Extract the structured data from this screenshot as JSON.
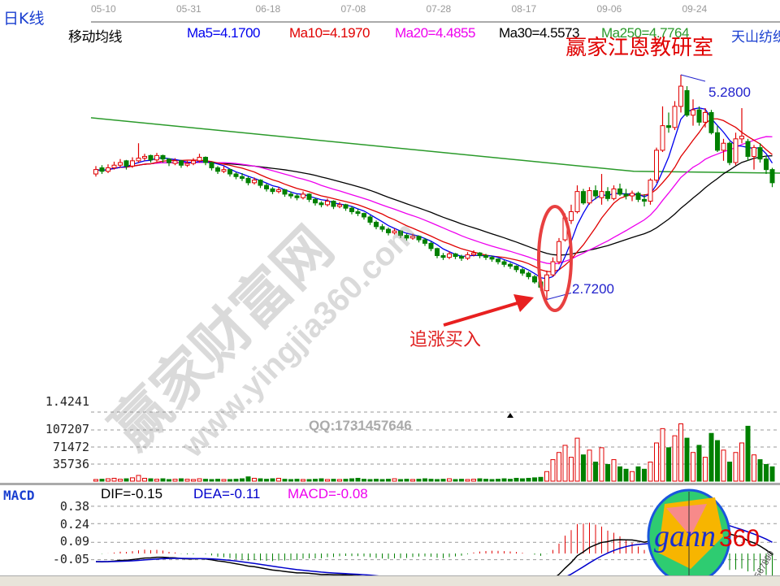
{
  "header": {
    "title": "日K线",
    "indicator_name": "移动均线",
    "stock_name": "天山纺织",
    "watermark_title": "嬴家江恩教研室"
  },
  "ma_legend": [
    {
      "label": "Ma5=4.1700",
      "color": "#0000ee"
    },
    {
      "label": "Ma10=4.1970",
      "color": "#e00000"
    },
    {
      "label": "Ma20=4.4855",
      "color": "#ee00ee"
    },
    {
      "label": "Ma30=4.5573",
      "color": "#000000"
    },
    {
      "label": "Ma250=4.7764",
      "color": "#2a9a2a"
    }
  ],
  "watermark": {
    "main": "赢家财富网",
    "url": "www.yingjia360.com",
    "qq": "QQ:1731457646"
  },
  "annotations": {
    "buy_text": "追涨买入",
    "high_label": "5.2800",
    "low_label": "2.7200"
  },
  "volume_axis": {
    "top_label": "1.4241",
    "ticks": [
      "107207",
      "71472",
      "35736"
    ]
  },
  "macd": {
    "title": "MACD",
    "dif": "DIF=-0.15",
    "dea": "DEA=-0.11",
    "macd": "MACD=-0.08",
    "ticks": [
      "0.38",
      "0.24",
      "0.09",
      "-0.05"
    ],
    "colors": {
      "dif": "#000000",
      "dea": "#0000cc",
      "macd": "#ee00ee"
    }
  },
  "logo": {
    "text1": "gann",
    "text2": "360",
    "ring_digits": "1234567890"
  },
  "colors": {
    "up": "#e00000",
    "down": "#008000"
  },
  "chart_data": {
    "type": "candlestick",
    "date_ticks": [
      {
        "label": "05-10",
        "index": 0
      },
      {
        "label": "05-31",
        "index": 14
      },
      {
        "label": "06-18",
        "index": 27
      },
      {
        "label": "07-08",
        "index": 41
      },
      {
        "label": "07-28",
        "index": 55
      },
      {
        "label": "08-17",
        "index": 69
      },
      {
        "label": "09-06",
        "index": 83
      },
      {
        "label": "09-24",
        "index": 97
      }
    ],
    "price_range": [
      2.72,
      5.28
    ],
    "ma250_ends": [
      4.79,
      4.16
    ],
    "ohlc": [
      [
        4.15,
        4.24,
        4.12,
        4.2
      ],
      [
        4.22,
        4.25,
        4.15,
        4.18
      ],
      [
        4.18,
        4.26,
        4.16,
        4.22
      ],
      [
        4.22,
        4.29,
        4.2,
        4.25
      ],
      [
        4.25,
        4.32,
        4.22,
        4.28
      ],
      [
        4.3,
        4.31,
        4.2,
        4.24
      ],
      [
        4.24,
        4.34,
        4.22,
        4.3
      ],
      [
        4.3,
        4.5,
        4.28,
        4.33
      ],
      [
        4.33,
        4.38,
        4.3,
        4.35
      ],
      [
        4.36,
        4.37,
        4.28,
        4.31
      ],
      [
        4.31,
        4.39,
        4.29,
        4.36
      ],
      [
        4.36,
        4.37,
        4.28,
        4.32
      ],
      [
        4.32,
        4.33,
        4.24,
        4.28
      ],
      [
        4.27,
        4.33,
        4.25,
        4.3
      ],
      [
        4.3,
        4.31,
        4.22,
        4.25
      ],
      [
        4.25,
        4.3,
        4.23,
        4.27
      ],
      [
        4.27,
        4.33,
        4.25,
        4.3
      ],
      [
        4.3,
        4.38,
        4.28,
        4.34
      ],
      [
        4.34,
        4.35,
        4.25,
        4.28
      ],
      [
        4.28,
        4.29,
        4.19,
        4.22
      ],
      [
        4.22,
        4.24,
        4.15,
        4.18
      ],
      [
        4.18,
        4.24,
        4.16,
        4.2
      ],
      [
        4.2,
        4.21,
        4.12,
        4.15
      ],
      [
        4.15,
        4.17,
        4.09,
        4.12
      ],
      [
        4.12,
        4.16,
        4.07,
        4.1
      ],
      [
        4.1,
        4.12,
        4.02,
        4.05
      ],
      [
        4.05,
        4.11,
        4.03,
        4.08
      ],
      [
        4.08,
        4.09,
        3.99,
        4.02
      ],
      [
        4.02,
        4.04,
        3.95,
        3.98
      ],
      [
        3.98,
        4.0,
        3.92,
        3.95
      ],
      [
        3.95,
        4.0,
        3.93,
        3.97
      ],
      [
        3.97,
        3.98,
        3.89,
        3.92
      ],
      [
        3.92,
        3.95,
        3.87,
        3.9
      ],
      [
        3.9,
        3.92,
        3.85,
        3.88
      ],
      [
        3.88,
        3.95,
        3.86,
        3.92
      ],
      [
        3.92,
        3.93,
        3.83,
        3.86
      ],
      [
        3.86,
        3.88,
        3.79,
        3.82
      ],
      [
        3.82,
        3.84,
        3.77,
        3.8
      ],
      [
        3.8,
        3.87,
        3.78,
        3.84
      ],
      [
        3.84,
        3.85,
        3.75,
        3.78
      ],
      [
        3.78,
        3.83,
        3.76,
        3.8
      ],
      [
        3.8,
        3.81,
        3.73,
        3.76
      ],
      [
        3.76,
        3.78,
        3.69,
        3.72
      ],
      [
        3.72,
        3.75,
        3.67,
        3.7
      ],
      [
        3.7,
        3.71,
        3.63,
        3.66
      ],
      [
        3.66,
        3.68,
        3.57,
        3.6
      ],
      [
        3.6,
        3.62,
        3.52,
        3.55
      ],
      [
        3.55,
        3.58,
        3.49,
        3.52
      ],
      [
        3.52,
        3.54,
        3.45,
        3.48
      ],
      [
        3.48,
        3.53,
        3.46,
        3.5
      ],
      [
        3.5,
        3.51,
        3.42,
        3.45
      ],
      [
        3.45,
        3.47,
        3.39,
        3.42
      ],
      [
        3.42,
        3.47,
        3.4,
        3.44
      ],
      [
        3.44,
        3.45,
        3.37,
        3.4
      ],
      [
        3.4,
        3.42,
        3.33,
        3.36
      ],
      [
        3.36,
        3.38,
        3.27,
        3.3
      ],
      [
        3.3,
        3.31,
        3.19,
        3.22
      ],
      [
        3.22,
        3.25,
        3.17,
        3.2
      ],
      [
        3.2,
        3.27,
        3.18,
        3.24
      ],
      [
        3.24,
        3.25,
        3.18,
        3.21
      ],
      [
        3.21,
        3.23,
        3.16,
        3.19
      ],
      [
        3.19,
        3.26,
        3.17,
        3.23
      ],
      [
        3.23,
        3.28,
        3.21,
        3.25
      ],
      [
        3.25,
        3.26,
        3.19,
        3.22
      ],
      [
        3.22,
        3.24,
        3.17,
        3.2
      ],
      [
        3.2,
        3.22,
        3.15,
        3.18
      ],
      [
        3.18,
        3.19,
        3.12,
        3.15
      ],
      [
        3.15,
        3.17,
        3.09,
        3.12
      ],
      [
        3.12,
        3.14,
        3.07,
        3.1
      ],
      [
        3.1,
        3.11,
        3.03,
        3.06
      ],
      [
        3.06,
        3.08,
        2.99,
        3.02
      ],
      [
        3.02,
        3.04,
        2.95,
        2.98
      ],
      [
        2.98,
        3.0,
        2.9,
        2.92
      ],
      [
        2.92,
        2.94,
        2.82,
        2.86
      ],
      [
        2.82,
        3.05,
        2.72,
        3.0
      ],
      [
        3.0,
        3.2,
        2.98,
        3.15
      ],
      [
        3.15,
        3.42,
        3.12,
        3.38
      ],
      [
        3.4,
        3.7,
        3.38,
        3.65
      ],
      [
        3.62,
        3.8,
        3.58,
        3.72
      ],
      [
        3.72,
        4.02,
        3.7,
        3.95
      ],
      [
        3.95,
        3.98,
        3.8,
        3.82
      ],
      [
        3.82,
        4.0,
        3.8,
        3.96
      ],
      [
        3.96,
        4.02,
        3.86,
        3.9
      ],
      [
        3.88,
        4.15,
        3.8,
        3.95
      ],
      [
        3.95,
        4.0,
        3.84,
        3.87
      ],
      [
        3.87,
        4.02,
        3.85,
        3.98
      ],
      [
        3.98,
        4.04,
        3.9,
        3.92
      ],
      [
        3.92,
        3.98,
        3.86,
        3.9
      ],
      [
        3.9,
        3.96,
        3.84,
        3.93
      ],
      [
        3.93,
        3.95,
        3.83,
        3.86
      ],
      [
        3.86,
        3.92,
        3.78,
        3.84
      ],
      [
        3.84,
        4.1,
        3.8,
        4.08
      ],
      [
        4.08,
        4.45,
        4.05,
        4.42
      ],
      [
        4.42,
        4.92,
        4.4,
        4.7
      ],
      [
        4.7,
        4.85,
        4.62,
        4.68
      ],
      [
        4.68,
        4.98,
        4.65,
        4.92
      ],
      [
        4.92,
        5.28,
        4.85,
        5.15
      ],
      [
        5.1,
        5.15,
        4.8,
        4.82
      ],
      [
        4.82,
        5.0,
        4.7,
        4.88
      ],
      [
        4.88,
        4.92,
        4.7,
        4.74
      ],
      [
        4.74,
        4.9,
        4.68,
        4.85
      ],
      [
        4.85,
        4.88,
        4.6,
        4.62
      ],
      [
        4.62,
        4.7,
        4.4,
        4.42
      ],
      [
        4.42,
        4.55,
        4.3,
        4.5
      ],
      [
        4.5,
        4.52,
        4.25,
        4.28
      ],
      [
        4.28,
        4.62,
        4.25,
        4.55
      ],
      [
        4.55,
        4.9,
        4.5,
        4.58
      ],
      [
        4.52,
        4.55,
        4.3,
        4.35
      ],
      [
        4.35,
        4.48,
        4.2,
        4.45
      ],
      [
        4.45,
        4.5,
        4.28,
        4.32
      ],
      [
        4.32,
        4.36,
        4.15,
        4.2
      ],
      [
        4.2,
        4.22,
        4.0,
        4.05
      ]
    ],
    "volume": [
      3000,
      4000,
      5000,
      6000,
      4000,
      5000,
      7000,
      12000,
      6000,
      5000,
      4000,
      5000,
      3000,
      4000,
      5000,
      4000,
      3000,
      5000,
      4000,
      3000,
      4000,
      3000,
      3000,
      4000,
      5000,
      9000,
      6000,
      5000,
      4000,
      5000,
      6000,
      4000,
      3000,
      4000,
      3000,
      3000,
      4000,
      5000,
      3000,
      4000,
      3000,
      4000,
      5000,
      6000,
      4000,
      3000,
      4000,
      3000,
      4000,
      5000,
      3000,
      4000,
      3000,
      4000,
      5000,
      4000,
      3000,
      4000,
      5000,
      3000,
      4000,
      3000,
      4000,
      5000,
      4000,
      3000,
      4000,
      5000,
      4000,
      6000,
      5000,
      6000,
      7000,
      8000,
      20000,
      45000,
      60000,
      75000,
      50000,
      90000,
      55000,
      65000,
      40000,
      70000,
      35000,
      45000,
      30000,
      25000,
      20000,
      30000,
      25000,
      40000,
      80000,
      110000,
      70000,
      95000,
      120000,
      90000,
      60000,
      75000,
      50000,
      100000,
      85000,
      65000,
      40000,
      60000,
      80000,
      115000,
      55000,
      45000,
      35000,
      30000
    ],
    "volume_ticks": [
      35736,
      71472,
      107207
    ],
    "macd_ticks": [
      0.38,
      0.24,
      0.09,
      -0.05
    ]
  }
}
